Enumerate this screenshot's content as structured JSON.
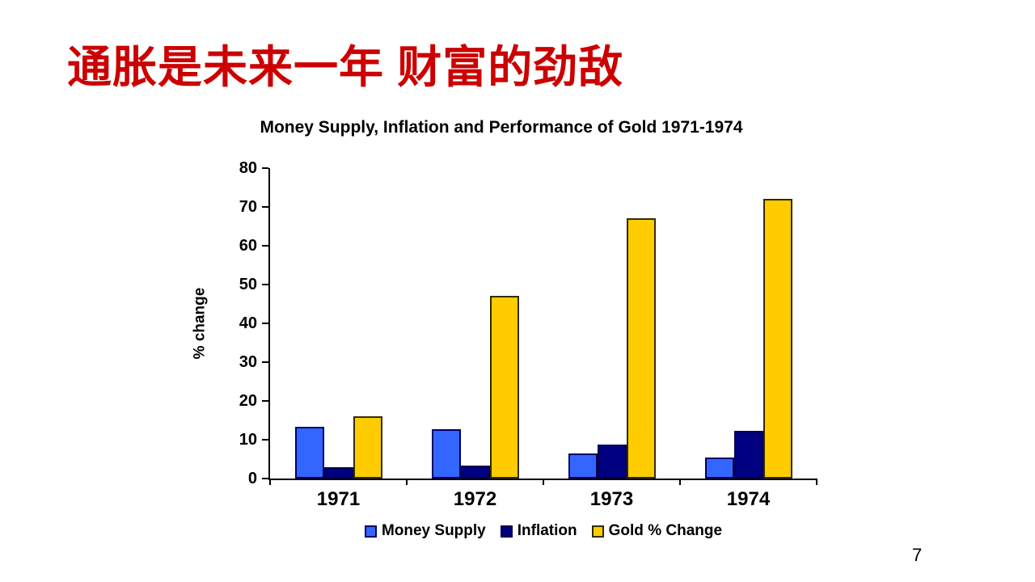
{
  "slide": {
    "title": "通胀是未来一年 财富的劲敌",
    "title_color": "#CC0000",
    "page_number": "7"
  },
  "chart_data": {
    "type": "bar",
    "title": "Money Supply, Inflation and Performance of Gold 1971-1974",
    "xlabel": "",
    "ylabel": "% change",
    "categories": [
      "1971",
      "1972",
      "1973",
      "1974"
    ],
    "series": [
      {
        "name": "Money Supply",
        "color": "#3366FF",
        "border_color": "#000066",
        "values": [
          13.3,
          12.8,
          6.5,
          5.4
        ]
      },
      {
        "name": "Inflation",
        "color": "#000080",
        "border_color": "#000050",
        "values": [
          3.0,
          3.3,
          8.7,
          12.3
        ]
      },
      {
        "name": "Gold % Change",
        "color": "#FFCC00",
        "border_color": "#332B00",
        "values": [
          16,
          47,
          67,
          72
        ]
      }
    ],
    "ylim": [
      0,
      80
    ],
    "ytick_step": 10,
    "grid": false,
    "legend_position": "bottom"
  }
}
